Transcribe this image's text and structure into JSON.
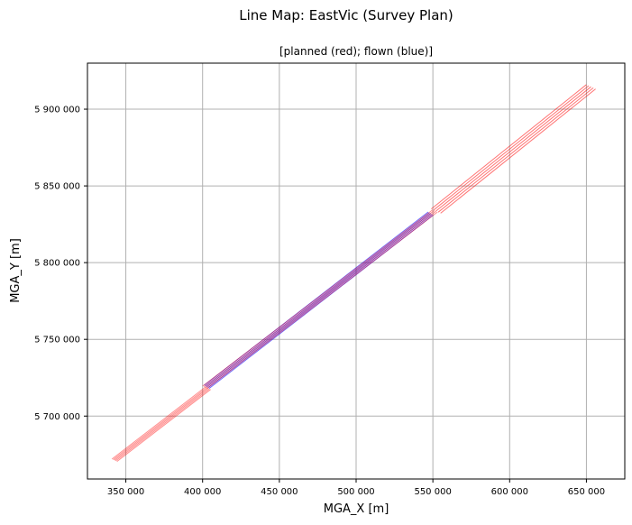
{
  "chart_data": {
    "type": "line",
    "title": "Line Map: EastVic (Survey Plan)",
    "subtitle": "[planned (red); flown (blue)]",
    "xlabel": "MGA_X [m]",
    "ylabel": "MGA_Y [m]",
    "xlim": [
      325000,
      675000
    ],
    "ylim": [
      5659000,
      5930000
    ],
    "x_ticks": [
      350000,
      400000,
      450000,
      500000,
      550000,
      600000,
      650000
    ],
    "x_tick_labels": [
      "350 000",
      "400 000",
      "450 000",
      "500 000",
      "550 000",
      "600 000",
      "650 000"
    ],
    "y_ticks": [
      5700000,
      5750000,
      5800000,
      5850000,
      5900000
    ],
    "y_tick_labels": [
      "5 700 000",
      "5 750 000",
      "5 800 000",
      "5 850 000",
      "5 900 000"
    ],
    "grid": true,
    "colors": {
      "planned": "#ff0000",
      "flown": "#0000ff"
    },
    "series": [
      {
        "kind": "planned",
        "color": "#ff0000",
        "alpha": 0.45,
        "lines": [
          {
            "x": [
              341000,
              402000
            ],
            "y": [
              5672000,
              5719000
            ]
          },
          {
            "x": [
              341800,
              402800
            ],
            "y": [
              5671600,
              5718600
            ]
          },
          {
            "x": [
              342600,
              403600
            ],
            "y": [
              5671200,
              5718200
            ]
          },
          {
            "x": [
              343400,
              404400
            ],
            "y": [
              5670800,
              5717800
            ]
          },
          {
            "x": [
              344200,
              405200
            ],
            "y": [
              5670400,
              5717400
            ]
          }
        ]
      },
      {
        "kind": "flown",
        "color": "#0000ff",
        "alpha": 0.6,
        "lines": [
          {
            "x": [
              401000,
              547000
            ],
            "y": [
              5720000,
              5833000
            ]
          },
          {
            "x": [
              401800,
              547800
            ],
            "y": [
              5719500,
              5832500
            ]
          },
          {
            "x": [
              402600,
              548600
            ],
            "y": [
              5719000,
              5832000
            ]
          },
          {
            "x": [
              403400,
              549400
            ],
            "y": [
              5718500,
              5831500
            ]
          },
          {
            "x": [
              404200,
              550200
            ],
            "y": [
              5718000,
              5831000
            ]
          }
        ]
      },
      {
        "kind": "planned",
        "color": "#ff0000",
        "alpha": 0.45,
        "lines": [
          {
            "x": [
              400000,
              550000
            ],
            "y": [
              5719500,
              5834500
            ]
          },
          {
            "x": [
              401000,
              551000
            ],
            "y": [
              5719000,
              5834000
            ]
          },
          {
            "x": [
              402000,
              552000
            ],
            "y": [
              5718500,
              5833500
            ]
          },
          {
            "x": [
              403000,
              553000
            ],
            "y": [
              5718000,
              5833000
            ]
          }
        ]
      },
      {
        "kind": "planned",
        "color": "#ff0000",
        "alpha": 0.55,
        "lines": [
          {
            "x": [
              549000,
              650000
            ],
            "y": [
              5835000,
              5916000
            ]
          },
          {
            "x": [
              550500,
              651500
            ],
            "y": [
              5834300,
              5915300
            ]
          },
          {
            "x": [
              552000,
              653000
            ],
            "y": [
              5833600,
              5914600
            ]
          },
          {
            "x": [
              553500,
              654500
            ],
            "y": [
              5832900,
              5913900
            ]
          },
          {
            "x": [
              555000,
              656000
            ],
            "y": [
              5832200,
              5913200
            ]
          }
        ]
      }
    ]
  }
}
